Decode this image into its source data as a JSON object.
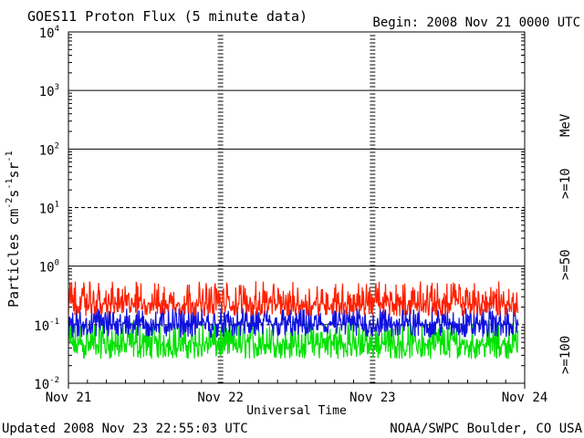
{
  "chart_data": {
    "type": "line",
    "title": "GOES11 Proton Flux (5 minute data)",
    "begin_label": "Begin: 2008 Nov 21 0000 UTC",
    "xlabel": "Universal Time",
    "ylabel": "Particles cm⁻²s⁻¹sr⁻¹",
    "ylabel_parts": {
      "base": "Particles cm",
      "s": "s",
      "sr": "sr",
      "exp_cm": "-2",
      "exp_s": "-1",
      "exp_sr": "-1"
    },
    "x_ticks": [
      "Nov 21",
      "Nov 22",
      "Nov 23",
      "Nov 24"
    ],
    "y_ticks": [
      {
        "base": "10",
        "exp": "4",
        "value": 10000
      },
      {
        "base": "10",
        "exp": "3",
        "value": 1000
      },
      {
        "base": "10",
        "exp": "2",
        "value": 100
      },
      {
        "base": "10",
        "exp": "1",
        "value": 10
      },
      {
        "base": "10",
        "exp": "0",
        "value": 1
      },
      {
        "base": "10",
        "exp": "-1",
        "value": 0.1
      },
      {
        "base": "10",
        "exp": "-2",
        "value": 0.01
      }
    ],
    "y_scale": "log",
    "ylim": [
      0.01,
      10000
    ],
    "xlim_days": [
      0,
      3
    ],
    "data_end_day": 2.955,
    "grid": true,
    "series": [
      {
        "name": ">=10",
        "color": "#ff2000",
        "median": 0.22,
        "low": 0.14,
        "high": 0.55
      },
      {
        "name": ">=50",
        "color": "#1010e0",
        "median": 0.1,
        "low": 0.06,
        "high": 0.2
      },
      {
        "name": ">=100",
        "color": "#00e000",
        "median": 0.045,
        "low": 0.026,
        "high": 0.12
      }
    ],
    "legend_unit": "MeV",
    "legend_placement": "right"
  },
  "footer": {
    "updated": "Updated 2008 Nov 23 22:55:03 UTC",
    "source": "NOAA/SWPC Boulder, CO USA"
  }
}
